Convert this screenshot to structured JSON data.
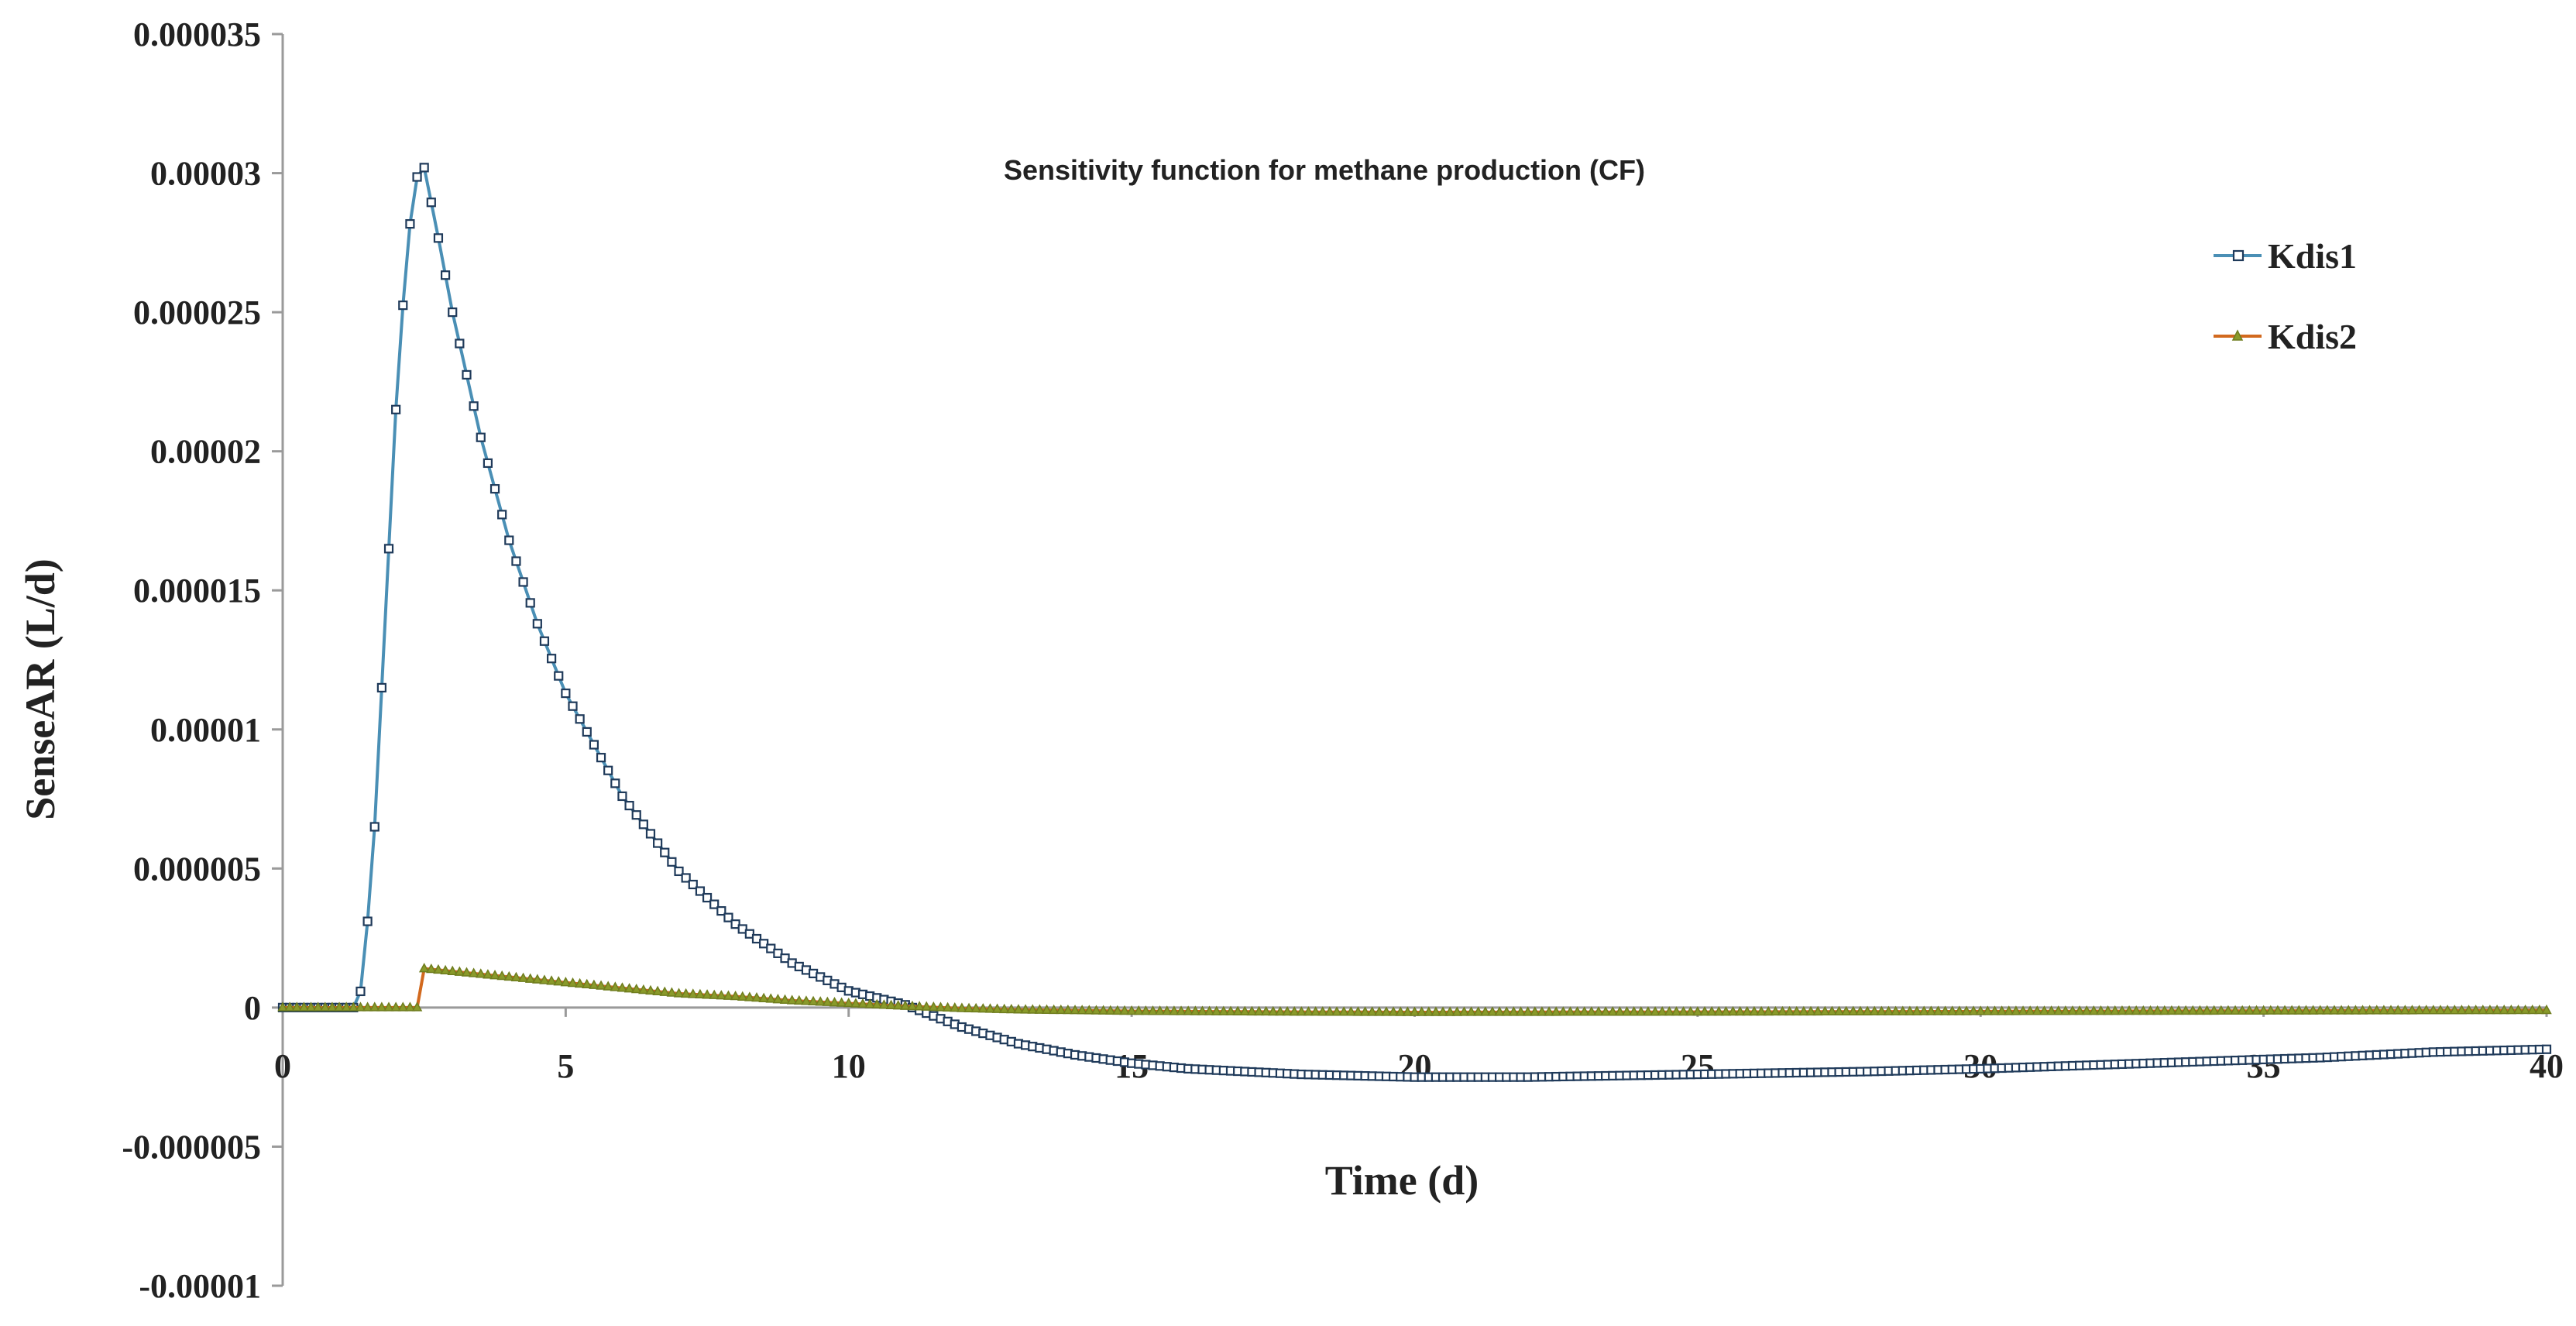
{
  "chart_data": {
    "type": "line",
    "title": "Sensitivity function for methane production (CF)",
    "xlabel": "Time (d)",
    "ylabel": "SenseAR (L/d)",
    "xlim": [
      0,
      40
    ],
    "ylim": [
      -1e-05,
      3.5e-05
    ],
    "x_ticks": [
      "0",
      "5",
      "10",
      "15",
      "20",
      "25",
      "30",
      "35",
      "40"
    ],
    "y_ticks": [
      "0.000035",
      "0.00003",
      "0.000025",
      "0.00002",
      "0.000015",
      "0.00001",
      "0.000005",
      "0",
      "-0.000005",
      "-0.00001"
    ],
    "legend_position": "right",
    "grid": false,
    "series": [
      {
        "name": "Kdis1",
        "color": "#4a8fb5",
        "marker": "square",
        "points": [
          [
            0,
            0
          ],
          [
            1.0,
            0
          ],
          [
            1.25,
            0
          ],
          [
            1.4,
            7e-07
          ],
          [
            1.6,
            5.5e-06
          ],
          [
            1.8,
            1.35e-05
          ],
          [
            2.0,
            2.15e-05
          ],
          [
            2.2,
            2.75e-05
          ],
          [
            2.4,
            3.02e-05
          ],
          [
            2.5,
            3.02e-05
          ],
          [
            2.7,
            2.82e-05
          ],
          [
            3.0,
            2.5e-05
          ],
          [
            3.5,
            2.05e-05
          ],
          [
            4.0,
            1.68e-05
          ],
          [
            4.5,
            1.38e-05
          ],
          [
            5.0,
            1.13e-05
          ],
          [
            6.0,
            7.6e-06
          ],
          [
            7.0,
            4.9e-06
          ],
          [
            8.0,
            3e-06
          ],
          [
            9.0,
            1.6e-06
          ],
          [
            10.0,
            6e-07
          ],
          [
            11.0,
            1e-07
          ],
          [
            12.0,
            -7e-07
          ],
          [
            13.0,
            -1.3e-06
          ],
          [
            14.0,
            -1.7e-06
          ],
          [
            15.0,
            -2e-06
          ],
          [
            16.0,
            -2.2e-06
          ],
          [
            18.0,
            -2.4e-06
          ],
          [
            20.0,
            -2.5e-06
          ],
          [
            22.0,
            -2.5e-06
          ],
          [
            25.0,
            -2.4e-06
          ],
          [
            28.0,
            -2.3e-06
          ],
          [
            30.0,
            -2.2e-06
          ],
          [
            33.0,
            -2e-06
          ],
          [
            36.0,
            -1.8e-06
          ],
          [
            38.0,
            -1.6e-06
          ],
          [
            40.0,
            -1.5e-06
          ]
        ]
      },
      {
        "name": "Kdis2",
        "color": "#d2691e",
        "marker": "triangle",
        "points": [
          [
            0,
            0
          ],
          [
            1.0,
            0
          ],
          [
            2.0,
            0
          ],
          [
            2.45,
            0
          ],
          [
            2.5,
            1.4e-06
          ],
          [
            3.0,
            1.3e-06
          ],
          [
            4.0,
            1.1e-06
          ],
          [
            5.0,
            9e-07
          ],
          [
            6.0,
            7e-07
          ],
          [
            7.0,
            5e-07
          ],
          [
            8.0,
            4e-07
          ],
          [
            9.0,
            2.5e-07
          ],
          [
            10.0,
            1.5e-07
          ],
          [
            11.0,
            5e-08
          ],
          [
            12.0,
            -3e-08
          ],
          [
            13.0,
            -8e-08
          ],
          [
            15.0,
            -1.3e-07
          ],
          [
            18.0,
            -1.6e-07
          ],
          [
            20.0,
            -1.7e-07
          ],
          [
            25.0,
            -1.6e-07
          ],
          [
            30.0,
            -1.4e-07
          ],
          [
            35.0,
            -1.2e-07
          ],
          [
            40.0,
            -1e-07
          ]
        ]
      }
    ]
  }
}
